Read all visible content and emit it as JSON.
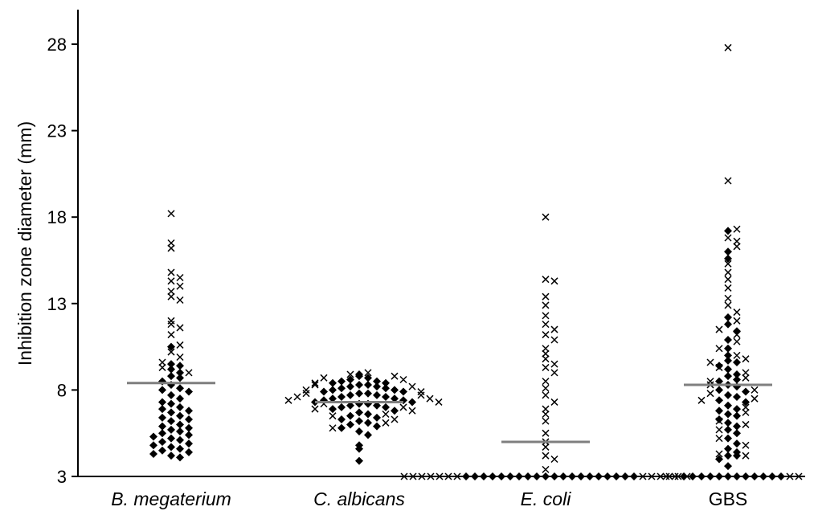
{
  "chart_data": {
    "type": "scatter",
    "title": "",
    "xlabel": "",
    "ylabel": "Inhibition zone diameter (mm)",
    "ylim": [
      3,
      30
    ],
    "yticks": [
      3,
      8,
      13,
      18,
      23,
      28
    ],
    "grid": false,
    "legend": "none",
    "colors": {
      "points": "#000000",
      "median_line": "#7f7f7f",
      "axis": "#000000"
    },
    "categories": [
      "B. megaterium",
      "C. albicans",
      "E. coli",
      "GBS"
    ],
    "category_italic": [
      true,
      true,
      true,
      false
    ],
    "medians": [
      8.4,
      7.3,
      5.0,
      8.3
    ],
    "groups": [
      {
        "category": "B. megaterium",
        "diamonds": [
          10.5,
          9.5,
          9.4,
          9.2,
          9.0,
          8.8,
          8.7,
          8.5,
          8.3,
          8.1,
          8.0,
          7.9,
          7.7,
          7.5,
          7.3,
          7.2,
          7.0,
          6.9,
          6.8,
          6.7,
          6.5,
          6.4,
          6.3,
          6.2,
          6.0,
          5.9,
          5.8,
          5.7,
          5.6,
          5.5,
          5.4,
          5.3,
          5.2,
          5.1,
          5.0,
          4.9,
          4.8,
          4.7,
          4.6,
          4.5,
          4.4,
          4.3,
          4.2,
          4.1
        ],
        "crosses": [
          18.2,
          16.5,
          16.2,
          14.8,
          14.5,
          14.3,
          14.0,
          13.7,
          13.4,
          13.2,
          12.0,
          11.8,
          11.6,
          11.2,
          10.6,
          10.2,
          9.9,
          9.6,
          9.3,
          9.0
        ]
      },
      {
        "category": "C. albicans",
        "diamonds": [
          8.9,
          8.8,
          8.7,
          8.6,
          8.5,
          8.5,
          8.4,
          8.4,
          8.3,
          8.3,
          8.2,
          8.2,
          8.1,
          8.1,
          8.0,
          8.0,
          7.9,
          7.9,
          7.8,
          7.8,
          7.7,
          7.7,
          7.6,
          7.6,
          7.5,
          7.5,
          7.4,
          7.4,
          7.3,
          7.3,
          7.2,
          7.2,
          7.1,
          7.1,
          7.0,
          7.0,
          6.9,
          6.8,
          6.7,
          6.6,
          6.5,
          6.4,
          6.3,
          6.2,
          6.1,
          6.0,
          5.9,
          5.8,
          5.6,
          5.4,
          4.8,
          4.6,
          3.9
        ],
        "crosses": [
          9.0,
          8.9,
          8.8,
          8.7,
          8.6,
          8.4,
          8.3,
          8.2,
          8.0,
          7.9,
          7.8,
          7.7,
          7.6,
          7.5,
          7.4,
          7.3,
          7.2,
          7.0,
          6.9,
          6.8,
          6.6,
          6.5,
          6.3,
          6.1,
          5.8
        ]
      },
      {
        "category": "E. coli",
        "diamonds": [
          3.0,
          3.0,
          3.0,
          3.0,
          3.0,
          3.0,
          3.0,
          3.0,
          3.0,
          3.0,
          3.0,
          3.0,
          3.0,
          3.0,
          3.0,
          3.0,
          3.0,
          3.0,
          3.0,
          3.0
        ],
        "crosses": [
          18.0,
          14.4,
          14.3,
          13.4,
          12.9,
          12.3,
          11.8,
          11.5,
          11.2,
          10.9,
          10.4,
          10.1,
          9.8,
          9.5,
          9.3,
          9.0,
          8.5,
          8.1,
          7.7,
          7.3,
          6.9,
          6.6,
          6.2,
          5.5,
          5.0,
          4.7,
          4.2,
          4.0,
          3.4,
          3.0,
          3.0,
          3.0,
          3.0,
          3.0,
          3.0,
          3.0,
          3.0,
          3.0,
          3.0,
          3.0,
          3.0,
          3.0
        ]
      },
      {
        "category": "GBS",
        "diamonds": [
          17.2,
          16.0,
          15.6,
          12.2,
          11.8,
          11.4,
          10.9,
          10.4,
          10.0,
          9.7,
          9.6,
          9.4,
          9.2,
          8.9,
          8.8,
          8.6,
          8.5,
          8.3,
          8.2,
          8.0,
          7.9,
          7.7,
          7.6,
          7.4,
          7.3,
          7.1,
          6.9,
          6.8,
          6.6,
          6.5,
          6.3,
          6.1,
          5.9,
          5.7,
          5.5,
          5.2,
          4.9,
          4.6,
          4.4,
          4.2,
          4.2,
          4.0,
          3.6,
          3.0,
          3.0,
          3.0,
          3.0,
          3.0,
          3.0,
          3.0,
          3.0,
          3.0,
          3.0,
          3.0,
          3.0
        ],
        "crosses": [
          27.8,
          20.1,
          17.3,
          16.8,
          16.6,
          16.3,
          15.3,
          14.8,
          14.4,
          13.9,
          13.3,
          12.9,
          12.5,
          12.0,
          11.5,
          11.2,
          10.8,
          10.4,
          10.0,
          9.8,
          9.6,
          9.3,
          9.0,
          8.7,
          8.5,
          8.3,
          8.0,
          7.8,
          7.5,
          7.4,
          7.0,
          6.7,
          6.2,
          6.0,
          5.7,
          5.2,
          4.8,
          4.3,
          4.2,
          3.0,
          3.0,
          3.0,
          3.0
        ]
      }
    ]
  }
}
